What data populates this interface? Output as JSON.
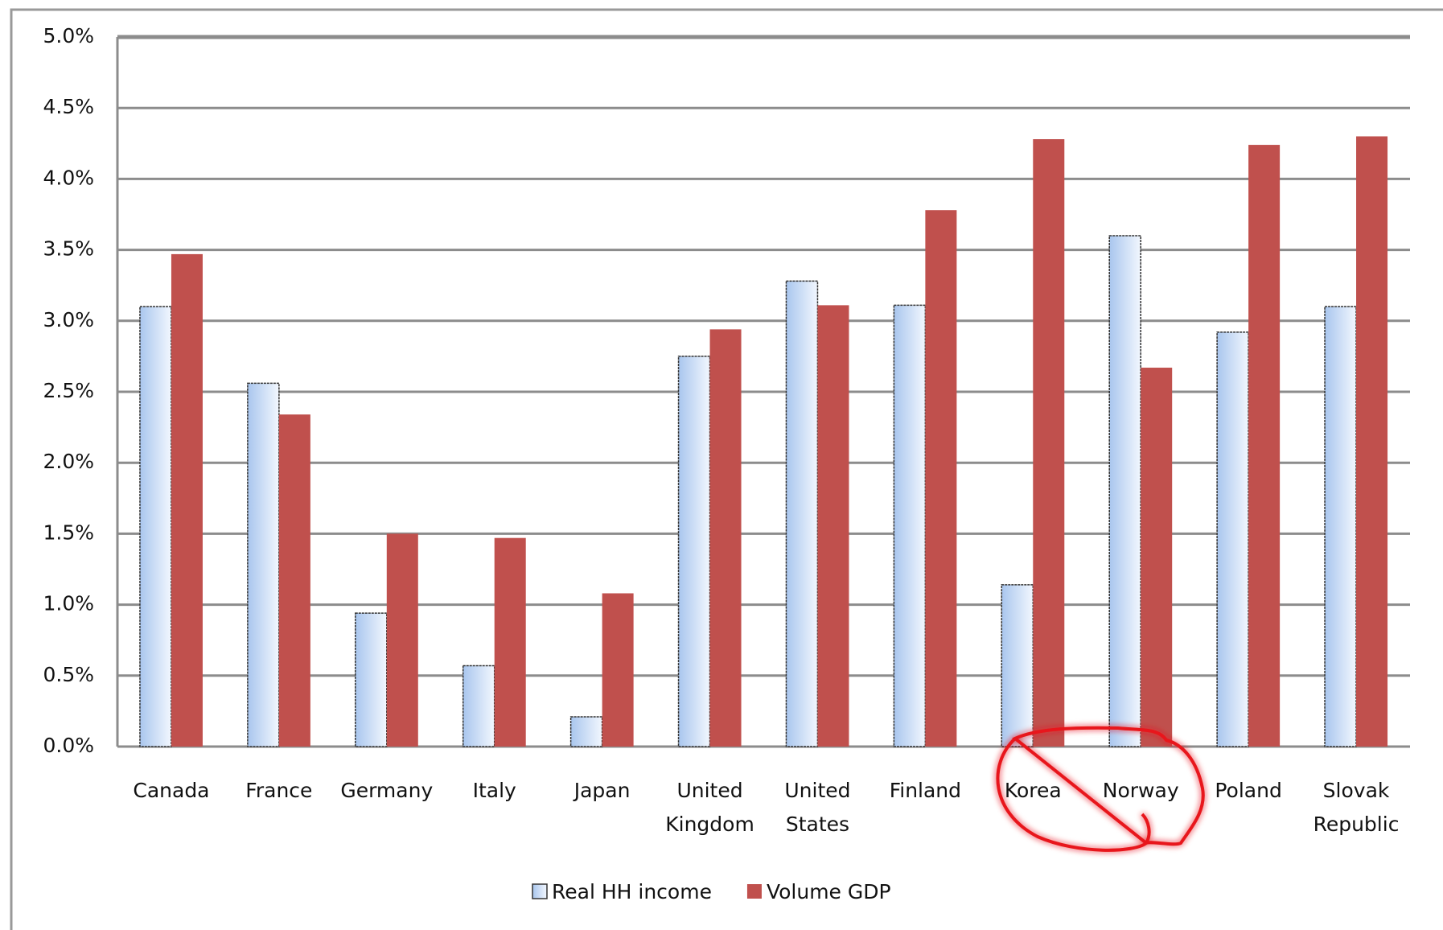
{
  "chart_data": {
    "type": "bar",
    "categories": [
      "Canada",
      "France",
      "Germany",
      "Italy",
      "Japan",
      "United Kingdom",
      "United States",
      "Finland",
      "Korea",
      "Norway",
      "Poland",
      "Slovak Republic"
    ],
    "series": [
      {
        "name": "Real HH income",
        "color": "#c6dbf5",
        "values": [
          3.1,
          2.56,
          0.94,
          0.57,
          0.21,
          2.75,
          3.28,
          3.11,
          1.14,
          3.6,
          2.92,
          3.1
        ]
      },
      {
        "name": "Volume GDP",
        "color": "#c0504d",
        "values": [
          3.47,
          2.34,
          1.5,
          1.47,
          1.08,
          2.94,
          3.11,
          3.78,
          4.28,
          2.67,
          4.24,
          4.3
        ]
      }
    ],
    "ylim": [
      0,
      5
    ],
    "yticks": [
      {
        "value": 0,
        "label": "0.0%"
      },
      {
        "value": 0.5,
        "label": "0.5%"
      },
      {
        "value": 1,
        "label": "1.0%"
      },
      {
        "value": 1.5,
        "label": "1.5%"
      },
      {
        "value": 2,
        "label": "2.0%"
      },
      {
        "value": 2.5,
        "label": "2.5%"
      },
      {
        "value": 3,
        "label": "3.0%"
      },
      {
        "value": 3.5,
        "label": "3.5%"
      },
      {
        "value": 4,
        "label": "4.0%"
      },
      {
        "value": 4.5,
        "label": "4.5%"
      },
      {
        "value": 5,
        "label": "5.0%"
      }
    ],
    "grid": true
  }
}
